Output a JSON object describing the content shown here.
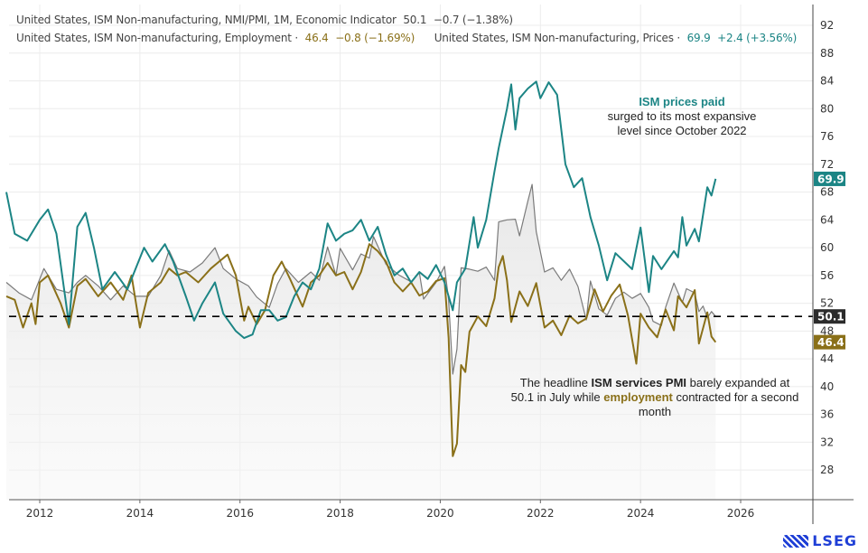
{
  "legend": {
    "pmi": {
      "label": "United States, ISM Non-manufacturing, NMI/PMI, 1M, Economic Indicator",
      "value": "50.1",
      "change": "−0.7 (−1.38%)"
    },
    "employment": {
      "label": "United States, ISM Non-manufacturing, Employment ·",
      "value": "46.4",
      "change": "−0.8 (−1.69%)"
    },
    "prices": {
      "label": "United States, ISM Non-manufacturing, Prices ·",
      "value": "69.9",
      "change": "+2.4 (+3.56%)"
    }
  },
  "annotations": {
    "prices_bold": "ISM prices paid",
    "prices_rest": "surged to its most expansive level since October 2022",
    "pmi_pre": "The headline ",
    "pmi_bold": "ISM services PMI",
    "pmi_mid": " barely expanded at 50.1 in July while ",
    "pmi_emp": "employment",
    "pmi_post": " contracted for a second month"
  },
  "logo": "LSEG",
  "colors": {
    "pmi": "#7a7a7a",
    "employment": "#8a7019",
    "prices": "#1c8585",
    "pmi_badge": "#2b2b2b",
    "reference_line": "#000000"
  },
  "chart_data": {
    "type": "line",
    "x_axis": {
      "type": "date",
      "range": [
        "2011-05",
        "2026-12"
      ],
      "ticks": [
        "2012",
        "2014",
        "2016",
        "2018",
        "2020",
        "2022",
        "2024",
        "2026"
      ]
    },
    "y_axis": {
      "position": "right",
      "range": [
        24,
        94
      ],
      "ticks": [
        28,
        32,
        36,
        40,
        44,
        48,
        52,
        56,
        60,
        64,
        68,
        72,
        76,
        80,
        84,
        88,
        92
      ]
    },
    "grid": true,
    "reference_line": {
      "value": 50.1,
      "style": "dashed"
    },
    "last_value_badges": [
      {
        "series": "prices",
        "value": "69.9"
      },
      {
        "series": "pmi",
        "value": "50.1"
      },
      {
        "series": "employment",
        "value": "46.4"
      }
    ],
    "series": [
      {
        "key": "prices",
        "color": "#1c8585",
        "points": [
          [
            "2011-05",
            68
          ],
          [
            "2011-07",
            62
          ],
          [
            "2011-10",
            61
          ],
          [
            "2012-01",
            64
          ],
          [
            "2012-03",
            65.5
          ],
          [
            "2012-05",
            62
          ],
          [
            "2012-08",
            49
          ],
          [
            "2012-10",
            63
          ],
          [
            "2012-12",
            65
          ],
          [
            "2013-02",
            60
          ],
          [
            "2013-04",
            54
          ],
          [
            "2013-07",
            56.5
          ],
          [
            "2013-10",
            54
          ],
          [
            "2013-12",
            57
          ],
          [
            "2014-02",
            60
          ],
          [
            "2014-04",
            58
          ],
          [
            "2014-07",
            60.5
          ],
          [
            "2014-09",
            58
          ],
          [
            "2014-12",
            53
          ],
          [
            "2015-02",
            49.5
          ],
          [
            "2015-04",
            52
          ],
          [
            "2015-07",
            55
          ],
          [
            "2015-09",
            50.5
          ],
          [
            "2015-12",
            48
          ],
          [
            "2016-02",
            47
          ],
          [
            "2016-04",
            47.5
          ],
          [
            "2016-06",
            51
          ],
          [
            "2016-08",
            51
          ],
          [
            "2016-10",
            49.5
          ],
          [
            "2016-12",
            50
          ],
          [
            "2017-02",
            53
          ],
          [
            "2017-04",
            55
          ],
          [
            "2017-06",
            54
          ],
          [
            "2017-08",
            57
          ],
          [
            "2017-10",
            63.5
          ],
          [
            "2017-12",
            61
          ],
          [
            "2018-02",
            62
          ],
          [
            "2018-04",
            62.5
          ],
          [
            "2018-06",
            64
          ],
          [
            "2018-08",
            61
          ],
          [
            "2018-10",
            63
          ],
          [
            "2018-12",
            59
          ],
          [
            "2019-02",
            56
          ],
          [
            "2019-04",
            57
          ],
          [
            "2019-06",
            55
          ],
          [
            "2019-08",
            56.5
          ],
          [
            "2019-10",
            55.5
          ],
          [
            "2019-12",
            57.5
          ],
          [
            "2020-02",
            55
          ],
          [
            "2020-04",
            51
          ],
          [
            "2020-05",
            55
          ],
          [
            "2020-07",
            57
          ],
          [
            "2020-09",
            64.4
          ],
          [
            "2020-10",
            60
          ],
          [
            "2020-12",
            64
          ],
          [
            "2021-02",
            71
          ],
          [
            "2021-03",
            74.3
          ],
          [
            "2021-05",
            80
          ],
          [
            "2021-06",
            83.5
          ],
          [
            "2021-07",
            77
          ],
          [
            "2021-08",
            81.5
          ],
          [
            "2021-10",
            82.9
          ],
          [
            "2021-12",
            83.9
          ],
          [
            "2022-01",
            81.5
          ],
          [
            "2022-03",
            83.8
          ],
          [
            "2022-05",
            82
          ],
          [
            "2022-07",
            72
          ],
          [
            "2022-09",
            68.7
          ],
          [
            "2022-11",
            70
          ],
          [
            "2023-01",
            64.4
          ],
          [
            "2023-03",
            60.3
          ],
          [
            "2023-05",
            55.3
          ],
          [
            "2023-07",
            59.2
          ],
          [
            "2023-11",
            56.9
          ],
          [
            "2024-01",
            62.9
          ],
          [
            "2024-03",
            53.6
          ],
          [
            "2024-04",
            58.8
          ],
          [
            "2024-06",
            56.9
          ],
          [
            "2024-09",
            59.5
          ],
          [
            "2024-10",
            58.6
          ],
          [
            "2024-11",
            64.4
          ],
          [
            "2024-12",
            60.3
          ],
          [
            "2025-02",
            62.7
          ],
          [
            "2025-03",
            60.9
          ],
          [
            "2025-05",
            68.7
          ],
          [
            "2025-06",
            67.5
          ],
          [
            "2025-07",
            69.9
          ]
        ]
      },
      {
        "key": "pmi",
        "color": "#7a7a7a",
        "points": [
          [
            "2011-05",
            55
          ],
          [
            "2011-08",
            53.5
          ],
          [
            "2011-11",
            52.5
          ],
          [
            "2012-02",
            57
          ],
          [
            "2012-05",
            54
          ],
          [
            "2012-08",
            53.5
          ],
          [
            "2012-10",
            55
          ],
          [
            "2012-12",
            56
          ],
          [
            "2013-03",
            54.5
          ],
          [
            "2013-06",
            52.5
          ],
          [
            "2013-09",
            54.5
          ],
          [
            "2013-12",
            53
          ],
          [
            "2014-03",
            53
          ],
          [
            "2014-06",
            56
          ],
          [
            "2014-08",
            59.6
          ],
          [
            "2014-10",
            57
          ],
          [
            "2015-01",
            56.5
          ],
          [
            "2015-04",
            57.8
          ],
          [
            "2015-07",
            60
          ],
          [
            "2015-09",
            57
          ],
          [
            "2015-12",
            55.5
          ],
          [
            "2016-03",
            54.5
          ],
          [
            "2016-05",
            52.9
          ],
          [
            "2016-08",
            51.4
          ],
          [
            "2016-10",
            54.8
          ],
          [
            "2016-12",
            57
          ],
          [
            "2017-03",
            55
          ],
          [
            "2017-06",
            56.5
          ],
          [
            "2017-08",
            55.3
          ],
          [
            "2017-10",
            60.1
          ],
          [
            "2017-12",
            56
          ],
          [
            "2018-01",
            59.9
          ],
          [
            "2018-04",
            56.8
          ],
          [
            "2018-06",
            59.1
          ],
          [
            "2018-08",
            58.5
          ],
          [
            "2018-09",
            61.6
          ],
          [
            "2018-12",
            57.6
          ],
          [
            "2019-03",
            56.1
          ],
          [
            "2019-06",
            55.1
          ],
          [
            "2019-08",
            56.4
          ],
          [
            "2019-09",
            52.6
          ],
          [
            "2019-12",
            55
          ],
          [
            "2020-02",
            57.3
          ],
          [
            "2020-03",
            52.5
          ],
          [
            "2020-04",
            41.8
          ],
          [
            "2020-05",
            45.4
          ],
          [
            "2020-06",
            57.1
          ],
          [
            "2020-08",
            56.9
          ],
          [
            "2020-10",
            56.6
          ],
          [
            "2020-12",
            57.2
          ],
          [
            "2021-02",
            55.3
          ],
          [
            "2021-03",
            63.7
          ],
          [
            "2021-05",
            64
          ],
          [
            "2021-07",
            64.1
          ],
          [
            "2021-08",
            61.7
          ],
          [
            "2021-10",
            66.7
          ],
          [
            "2021-11",
            69.1
          ],
          [
            "2021-12",
            62.3
          ],
          [
            "2022-02",
            56.5
          ],
          [
            "2022-04",
            57.1
          ],
          [
            "2022-06",
            55.3
          ],
          [
            "2022-08",
            56.9
          ],
          [
            "2022-10",
            54.4
          ],
          [
            "2022-12",
            49.6
          ],
          [
            "2023-01",
            55.2
          ],
          [
            "2023-03",
            51.2
          ],
          [
            "2023-05",
            50.3
          ],
          [
            "2023-07",
            52.7
          ],
          [
            "2023-09",
            53.6
          ],
          [
            "2023-11",
            52.7
          ],
          [
            "2024-01",
            53.4
          ],
          [
            "2024-03",
            51.4
          ],
          [
            "2024-04",
            49.4
          ],
          [
            "2024-06",
            48.8
          ],
          [
            "2024-07",
            51.4
          ],
          [
            "2024-09",
            54.9
          ],
          [
            "2024-11",
            52.1
          ],
          [
            "2024-12",
            54.1
          ],
          [
            "2025-02",
            53.5
          ],
          [
            "2025-03",
            50.8
          ],
          [
            "2025-04",
            51.6
          ],
          [
            "2025-05",
            49.9
          ],
          [
            "2025-06",
            50.8
          ],
          [
            "2025-07",
            50.1
          ]
        ]
      },
      {
        "key": "employment",
        "color": "#8a7019",
        "points": [
          [
            "2011-05",
            53
          ],
          [
            "2011-07",
            52.5
          ],
          [
            "2011-09",
            48.5
          ],
          [
            "2011-11",
            52
          ],
          [
            "2011-12",
            49
          ],
          [
            "2012-01",
            55
          ],
          [
            "2012-03",
            56
          ],
          [
            "2012-06",
            52
          ],
          [
            "2012-08",
            48.5
          ],
          [
            "2012-10",
            54.5
          ],
          [
            "2012-12",
            55.5
          ],
          [
            "2013-03",
            53
          ],
          [
            "2013-06",
            55
          ],
          [
            "2013-09",
            52.5
          ],
          [
            "2013-11",
            56
          ],
          [
            "2014-01",
            48.5
          ],
          [
            "2014-03",
            53.5
          ],
          [
            "2014-06",
            55
          ],
          [
            "2014-08",
            57
          ],
          [
            "2014-10",
            56
          ],
          [
            "2014-12",
            56.5
          ],
          [
            "2015-03",
            55
          ],
          [
            "2015-06",
            57
          ],
          [
            "2015-08",
            58
          ],
          [
            "2015-10",
            59
          ],
          [
            "2015-12",
            56
          ],
          [
            "2016-02",
            49.5
          ],
          [
            "2016-03",
            51.5
          ],
          [
            "2016-05",
            49
          ],
          [
            "2016-07",
            51
          ],
          [
            "2016-09",
            56
          ],
          [
            "2016-11",
            58
          ],
          [
            "2017-01",
            55.5
          ],
          [
            "2017-04",
            51.5
          ],
          [
            "2017-06",
            55
          ],
          [
            "2017-08",
            56
          ],
          [
            "2017-10",
            57.8
          ],
          [
            "2017-12",
            56
          ],
          [
            "2018-02",
            56.5
          ],
          [
            "2018-04",
            54
          ],
          [
            "2018-06",
            56.5
          ],
          [
            "2018-08",
            60.5
          ],
          [
            "2018-10",
            59.5
          ],
          [
            "2018-12",
            58
          ],
          [
            "2019-02",
            55
          ],
          [
            "2019-04",
            53.7
          ],
          [
            "2019-06",
            55
          ],
          [
            "2019-08",
            53.1
          ],
          [
            "2019-10",
            53.7
          ],
          [
            "2019-12",
            55.2
          ],
          [
            "2020-02",
            55.6
          ],
          [
            "2020-03",
            47
          ],
          [
            "2020-04",
            30
          ],
          [
            "2020-05",
            31.8
          ],
          [
            "2020-06",
            43.1
          ],
          [
            "2020-07",
            42.1
          ],
          [
            "2020-08",
            47.9
          ],
          [
            "2020-10",
            50.1
          ],
          [
            "2020-12",
            48.7
          ],
          [
            "2021-02",
            52.7
          ],
          [
            "2021-03",
            57.2
          ],
          [
            "2021-04",
            58.8
          ],
          [
            "2021-05",
            55.3
          ],
          [
            "2021-06",
            49.3
          ],
          [
            "2021-08",
            53.7
          ],
          [
            "2021-10",
            51.6
          ],
          [
            "2021-12",
            54.9
          ],
          [
            "2022-02",
            48.5
          ],
          [
            "2022-04",
            49.5
          ],
          [
            "2022-06",
            47.4
          ],
          [
            "2022-08",
            50.2
          ],
          [
            "2022-10",
            49.1
          ],
          [
            "2022-12",
            49.8
          ],
          [
            "2023-02",
            54
          ],
          [
            "2023-04",
            50.8
          ],
          [
            "2023-06",
            53.1
          ],
          [
            "2023-08",
            54.7
          ],
          [
            "2023-10",
            50.2
          ],
          [
            "2023-12",
            43.3
          ],
          [
            "2024-01",
            50.5
          ],
          [
            "2024-03",
            48.5
          ],
          [
            "2024-05",
            47.1
          ],
          [
            "2024-07",
            51.1
          ],
          [
            "2024-09",
            48.1
          ],
          [
            "2024-10",
            53
          ],
          [
            "2024-12",
            51.4
          ],
          [
            "2025-02",
            53.9
          ],
          [
            "2025-03",
            46.2
          ],
          [
            "2025-05",
            50.7
          ],
          [
            "2025-06",
            47.2
          ],
          [
            "2025-07",
            46.4
          ]
        ]
      }
    ]
  }
}
